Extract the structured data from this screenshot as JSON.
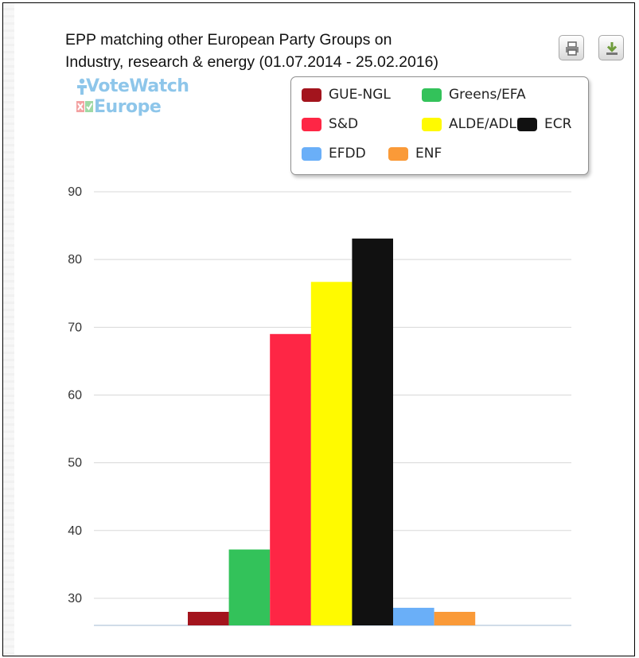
{
  "header": {
    "title_line1": "EPP matching other European Party Groups on",
    "title_line2": "Industry, research & energy (01.07.2014 - 25.02.2016)"
  },
  "logo": {
    "line1": "VoteWatch",
    "line2": "Europe",
    "color": "#8ec6ea"
  },
  "toolbar": {
    "print_icon": "printer-icon",
    "download_icon": "download-icon"
  },
  "chart_data": {
    "type": "bar",
    "title": "EPP matching other European Party Groups on Industry, research & energy (01.07.2014 - 25.02.2016)",
    "xlabel": "",
    "ylabel": "",
    "ylim": [
      26,
      90
    ],
    "yticks": [
      30,
      40,
      50,
      60,
      70,
      80,
      90
    ],
    "grid": true,
    "legend_position": "top-right",
    "series": [
      {
        "name": "GUE-NGL",
        "value": 28.0,
        "color": "#a3141d"
      },
      {
        "name": "Greens/EFA",
        "value": 37.2,
        "color": "#33c25a"
      },
      {
        "name": "S&D",
        "value": 69.0,
        "color": "#fe2645"
      },
      {
        "name": "ALDE/ADLE",
        "value": 76.7,
        "color": "#fffa00"
      },
      {
        "name": "ECR",
        "value": 83.1,
        "color": "#111111"
      },
      {
        "name": "EFDD",
        "value": 28.6,
        "color": "#6aaff8"
      },
      {
        "name": "ENF",
        "value": 28.0,
        "color": "#fa9a38"
      }
    ]
  }
}
